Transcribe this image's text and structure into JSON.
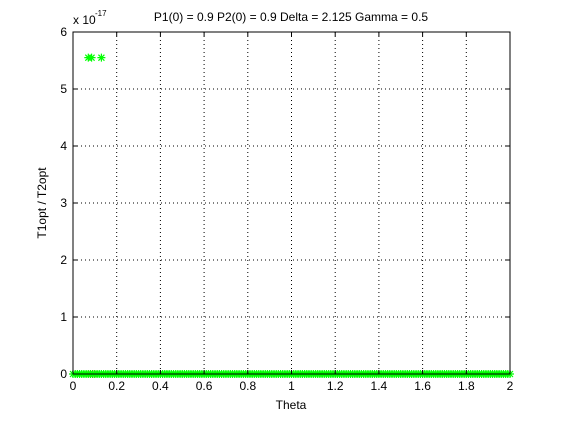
{
  "chart_data": {
    "type": "scatter",
    "title": "P1(0) = 0.9 P2(0) = 0.9 Delta = 2.125 Gamma = 0.5",
    "xlabel": "Theta",
    "ylabel": "T1opt / T2opt",
    "xlim": [
      0,
      2
    ],
    "ylim": [
      0,
      6
    ],
    "y_multiplier_label": "x 10",
    "y_multiplier_exponent": "-17",
    "y_scale_exponent": -17,
    "xticks": [
      0,
      0.2,
      0.4,
      0.6,
      0.8,
      1,
      1.2,
      1.4,
      1.6,
      1.8,
      2
    ],
    "xtick_labels": [
      "0",
      "0.2",
      "0.4",
      "0.6",
      "0.8",
      "1",
      "1.2",
      "1.4",
      "1.6",
      "1.8",
      "2"
    ],
    "yticks": [
      0,
      1,
      2,
      3,
      4,
      5,
      6
    ],
    "ytick_labels": [
      "0",
      "1",
      "2",
      "3",
      "4",
      "5",
      "6"
    ],
    "grid": true,
    "grid_style": "dotted",
    "marker": "asterisk",
    "series": [
      {
        "color": "#ff0000",
        "x": [
          0.08,
          0.09,
          0.1
        ],
        "y": [
          0,
          0,
          0
        ]
      },
      {
        "color": "#00ff00",
        "x_range": [
          0,
          2
        ],
        "x_step": 0.01,
        "y": 0,
        "outliers": [
          {
            "x": 0.07,
            "y": 5.55
          },
          {
            "x": 0.085,
            "y": 5.55
          },
          {
            "x": 0.13,
            "y": 5.55
          }
        ]
      }
    ]
  }
}
